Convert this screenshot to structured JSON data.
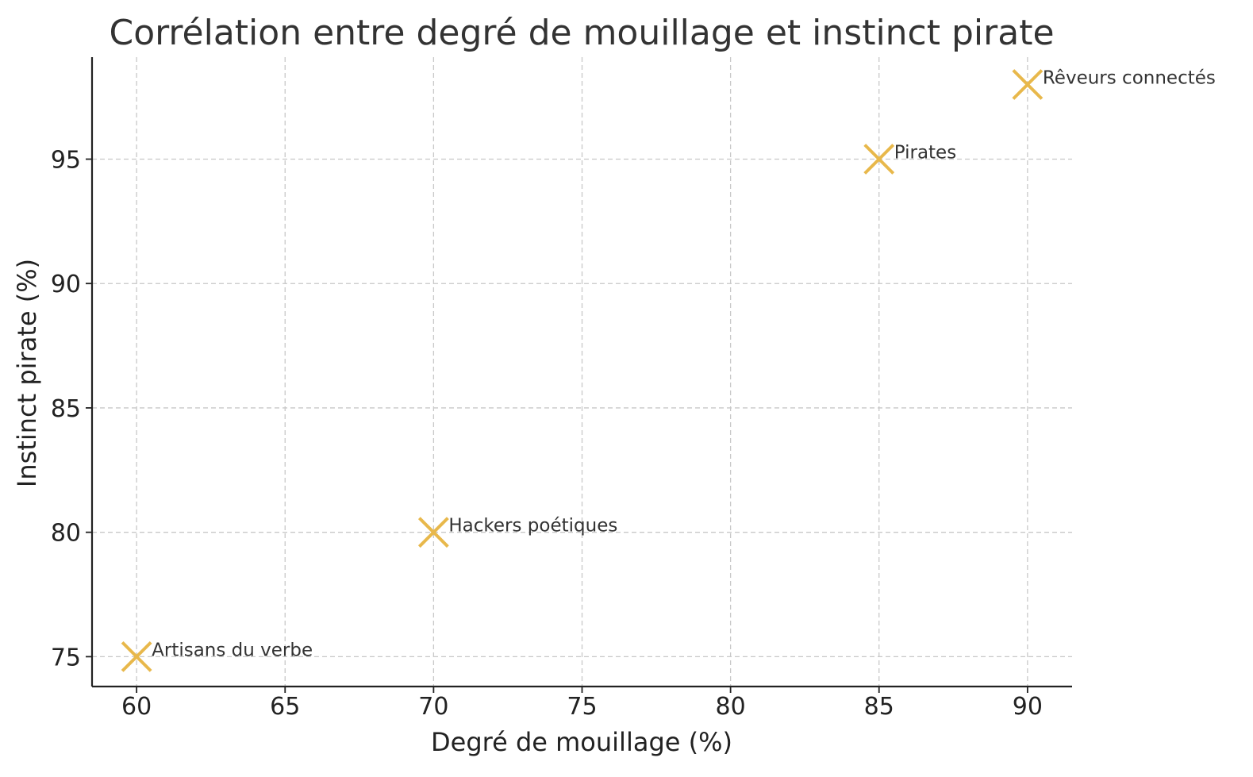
{
  "chart_data": {
    "type": "scatter",
    "title": "Corrélation entre degré de mouillage et instinct pirate",
    "xlabel": "Degré de mouillage (%)",
    "ylabel": "Instinct pirate (%)",
    "xlim": [
      58.5,
      91.5
    ],
    "ylim": [
      73.8,
      99.1
    ],
    "xticks": [
      60,
      65,
      70,
      75,
      80,
      85,
      90
    ],
    "yticks": [
      75,
      80,
      85,
      90,
      95
    ],
    "grid": true,
    "marker": "x",
    "marker_color": "#E8B84B",
    "points": [
      {
        "label": "Artisans du verbe",
        "x": 60,
        "y": 75
      },
      {
        "label": "Hackers poétiques",
        "x": 70,
        "y": 80
      },
      {
        "label": "Pirates",
        "x": 85,
        "y": 95
      },
      {
        "label": "Rêveurs connectés",
        "x": 90,
        "y": 98
      }
    ]
  }
}
